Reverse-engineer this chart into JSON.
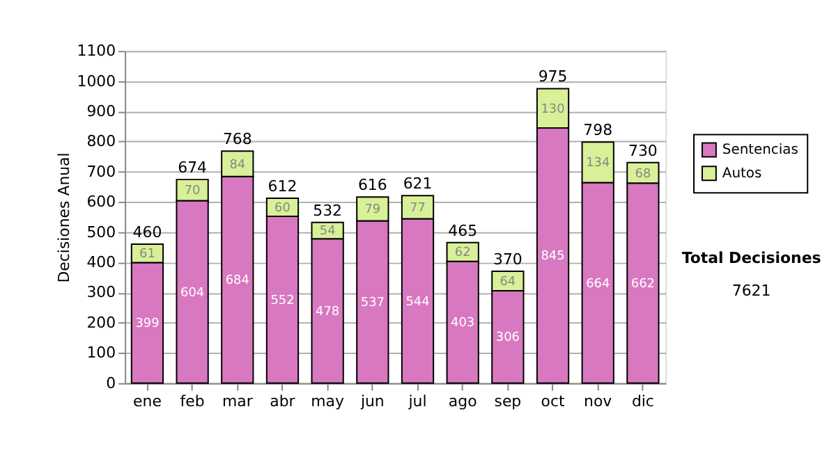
{
  "chart_data": {
    "type": "bar",
    "stacked": true,
    "ylabel": "Decisiones Anual",
    "categories": [
      "ene",
      "feb",
      "mar",
      "abr",
      "may",
      "jun",
      "jul",
      "ago",
      "sep",
      "oct",
      "nov",
      "dic"
    ],
    "series": [
      {
        "name": "Sentencias",
        "color": "#d878c0",
        "values": [
          399,
          604,
          684,
          552,
          478,
          537,
          544,
          403,
          306,
          845,
          664,
          662
        ]
      },
      {
        "name": "Autos",
        "color": "#d8f098",
        "values": [
          61,
          70,
          84,
          60,
          54,
          79,
          77,
          62,
          64,
          130,
          134,
          68
        ]
      }
    ],
    "totals": [
      "460",
      "674",
      "768",
      "612",
      "532",
      "616",
      "621",
      "465",
      "370",
      "975",
      "798",
      "730"
    ],
    "data_labels": true,
    "ylim": [
      0,
      1100
    ],
    "yticks": [
      0,
      100,
      200,
      300,
      400,
      500,
      600,
      700,
      800,
      900,
      1000,
      1100
    ],
    "grid": "y",
    "legend": "right",
    "annotations": [
      "Total Decisiones",
      "7621"
    ]
  }
}
